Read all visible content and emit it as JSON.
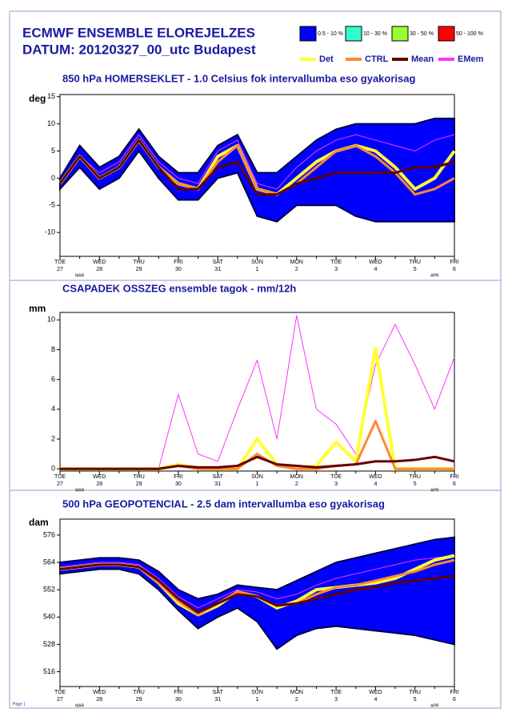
{
  "header": {
    "title": "ECMWF ENSEMBLE ELOREJELZES",
    "subtitle": "DATUM: 20120327_00_utc  Budapest",
    "footer": "Page 1",
    "legend": [
      {
        "name": "0.5 - 10 %",
        "color": "#0000ff",
        "kind": "box"
      },
      {
        "name": "10 - 30 %",
        "color": "#33ffcc",
        "kind": "box"
      },
      {
        "name": "30 - 50 %",
        "color": "#99ff33",
        "kind": "box"
      },
      {
        "name": "50 - 100 %",
        "color": "#ff0000",
        "kind": "box"
      },
      {
        "name": "Det",
        "color": "#ffff33",
        "kind": "line"
      },
      {
        "name": "CTRL",
        "color": "#ff8833",
        "kind": "line"
      },
      {
        "name": "Mean",
        "color": "#660000",
        "kind": "line"
      },
      {
        "name": "EMem",
        "color": "#ff33ff",
        "kind": "line"
      }
    ]
  },
  "chart_data": [
    {
      "type": "line",
      "title": "850 hPa HOMERSEKLET - 1.0 Celsius fok intervallumba eso gyakorisag",
      "ylabel": "deg",
      "categories": [
        "TUE",
        null,
        "WED",
        null,
        "THU",
        null,
        "FRI",
        null,
        "SAT",
        null,
        "SUN",
        null,
        "MON",
        null,
        "TUE",
        null,
        "WED",
        null,
        "THU",
        null,
        "FRI"
      ],
      "dates": [
        "27",
        null,
        "28",
        null,
        "29",
        null,
        "30",
        null,
        "31",
        null,
        "1",
        null,
        "2",
        null,
        "3",
        null,
        "4",
        null,
        "5",
        null,
        "6"
      ],
      "months": [
        null,
        "MAR",
        null,
        null,
        null,
        null,
        null,
        null,
        null,
        null,
        null,
        null,
        null,
        null,
        null,
        null,
        null,
        null,
        null,
        "APR",
        null
      ],
      "ylim": [
        -14.4,
        15.4
      ],
      "yticks": [
        -10,
        -5,
        0,
        5,
        10,
        15
      ],
      "envelope": {
        "color": "#0000ff",
        "upper": [
          0,
          6,
          2,
          4,
          9,
          4,
          1,
          1,
          6,
          8,
          1,
          1,
          4,
          7,
          9,
          10,
          10,
          10,
          10,
          11,
          11
        ],
        "lower": [
          -2,
          2,
          -2,
          0,
          5,
          0,
          -4,
          -4,
          0,
          1,
          -7,
          -8,
          -5,
          -5,
          -5,
          -7,
          -8,
          -8,
          -8,
          -8,
          -8
        ]
      },
      "series": [
        {
          "color": "#ff33ff",
          "width": 1,
          "values": [
            -1,
            4,
            1,
            3,
            8,
            3,
            0,
            -1,
            5,
            7,
            -1,
            -2,
            2,
            5,
            7,
            8,
            7,
            6,
            5,
            7,
            8
          ]
        },
        {
          "color": "#ffff33",
          "width": 4,
          "values": [
            -1,
            4,
            0,
            2,
            7,
            2,
            -1,
            -2,
            4,
            6,
            -2,
            -3,
            0,
            3,
            5,
            6,
            5,
            2,
            -2,
            0,
            5
          ]
        },
        {
          "color": "#ff8833",
          "width": 3,
          "values": [
            -1,
            4,
            0,
            2,
            7,
            2,
            -1,
            -2,
            3,
            6,
            -2,
            -3,
            -1,
            2,
            5,
            6,
            4,
            1,
            -3,
            -2,
            0
          ]
        },
        {
          "color": "#660000",
          "width": 3,
          "values": [
            -1,
            4,
            0,
            2,
            7,
            2,
            -2,
            -2,
            2,
            3,
            -3,
            -3,
            -1,
            0,
            1,
            1,
            1,
            1,
            2,
            2,
            3
          ]
        }
      ]
    },
    {
      "type": "line",
      "title": "CSAPADEK OSSZEG ensemble tagok - mm/12h",
      "ylabel": "mm",
      "categories": [
        "TUE",
        null,
        "WED",
        null,
        "THU",
        null,
        "FRI",
        null,
        "SAT",
        null,
        "SUN",
        null,
        "MON",
        null,
        "TUE",
        null,
        "WED",
        null,
        "THU",
        null,
        "FRI"
      ],
      "dates": [
        "27",
        null,
        "28",
        null,
        "29",
        null,
        "30",
        null,
        "31",
        null,
        "1",
        null,
        "2",
        null,
        "3",
        null,
        "4",
        null,
        "5",
        null,
        "6"
      ],
      "months": [
        null,
        "MAR",
        null,
        null,
        null,
        null,
        null,
        null,
        null,
        null,
        null,
        null,
        null,
        null,
        null,
        null,
        null,
        null,
        null,
        "APR",
        null
      ],
      "ylim": [
        -0.15,
        10.5
      ],
      "yticks": [
        0,
        2,
        4,
        6,
        8,
        10
      ],
      "series": [
        {
          "color": "#ff33ff",
          "width": 1,
          "values": [
            0,
            0,
            0,
            0,
            0,
            0,
            5,
            1,
            0.5,
            4,
            7.3,
            2,
            10.3,
            4,
            3,
            1,
            7,
            9.7,
            7,
            4,
            7.5
          ]
        },
        {
          "color": "#ffff33",
          "width": 4,
          "values": [
            0,
            0,
            0,
            0,
            0,
            0,
            0.3,
            0,
            0,
            0,
            2,
            0.3,
            0,
            0.2,
            1.8,
            0.5,
            8.1,
            0,
            0,
            0,
            0
          ]
        },
        {
          "color": "#ff8833",
          "width": 3,
          "values": [
            0,
            0,
            0,
            0,
            0,
            0,
            0.2,
            0,
            0,
            0,
            1,
            0.2,
            0,
            0,
            0.2,
            0.3,
            3.2,
            0,
            0,
            0,
            0
          ]
        },
        {
          "color": "#660000",
          "width": 3,
          "values": [
            0,
            0,
            0,
            0,
            0,
            0,
            0.2,
            0.1,
            0.1,
            0.2,
            0.8,
            0.3,
            0.2,
            0.1,
            0.2,
            0.3,
            0.5,
            0.5,
            0.6,
            0.8,
            0.5
          ]
        }
      ]
    },
    {
      "type": "line",
      "title": "500 hPa GEOPOTENCIAL - 2.5 dam intervallumba eso gyakorisag",
      "ylabel": "dam",
      "categories": [
        "TUE",
        null,
        "WED",
        null,
        "THU",
        null,
        "FRI",
        null,
        "SAT",
        null,
        "SUN",
        null,
        "MON",
        null,
        "TUE",
        null,
        "WED",
        null,
        "THU",
        null,
        "FRI"
      ],
      "dates": [
        "27",
        null,
        "28",
        null,
        "29",
        null,
        "30",
        null,
        "31",
        null,
        "1",
        null,
        "2",
        null,
        "3",
        null,
        "4",
        null,
        "5",
        null,
        "6"
      ],
      "months": [
        null,
        "MAR",
        null,
        null,
        null,
        null,
        null,
        null,
        null,
        null,
        null,
        null,
        null,
        null,
        null,
        null,
        null,
        null,
        null,
        "APR",
        null
      ],
      "ylim": [
        509.5,
        583
      ],
      "yticks": [
        516,
        528,
        540,
        552,
        564,
        576
      ],
      "envelope": {
        "color": "#0000ff",
        "upper": [
          564,
          565,
          566,
          566,
          565,
          560,
          552,
          548,
          550,
          554,
          553,
          552,
          556,
          560,
          564,
          566,
          568,
          570,
          572,
          574,
          575
        ],
        "lower": [
          559,
          560,
          561,
          561,
          559,
          552,
          543,
          535,
          540,
          544,
          538,
          526,
          532,
          535,
          536,
          535,
          534,
          533,
          532,
          530,
          528
        ]
      },
      "series": [
        {
          "color": "#ff33ff",
          "width": 1,
          "values": [
            562,
            563,
            564,
            564,
            563,
            557,
            549,
            544,
            548,
            552,
            551,
            548,
            550,
            554,
            557,
            559,
            561,
            563,
            565,
            566,
            567
          ]
        },
        {
          "color": "#ffff33",
          "width": 4,
          "values": [
            561,
            562,
            563,
            563,
            562,
            555,
            546,
            541,
            545,
            551,
            549,
            544,
            547,
            552,
            553,
            554,
            555,
            557,
            561,
            565,
            567
          ]
        },
        {
          "color": "#ff8833",
          "width": 3,
          "values": [
            561,
            562,
            563,
            563,
            562,
            555,
            547,
            541,
            546,
            551,
            549,
            545,
            546,
            550,
            553,
            554,
            556,
            558,
            560,
            563,
            565
          ]
        },
        {
          "color": "#660000",
          "width": 3,
          "values": [
            561,
            562,
            563,
            563,
            562,
            556,
            548,
            542,
            546,
            550,
            549,
            545,
            546,
            548,
            550,
            552,
            553,
            555,
            556,
            557,
            558
          ]
        }
      ]
    }
  ]
}
